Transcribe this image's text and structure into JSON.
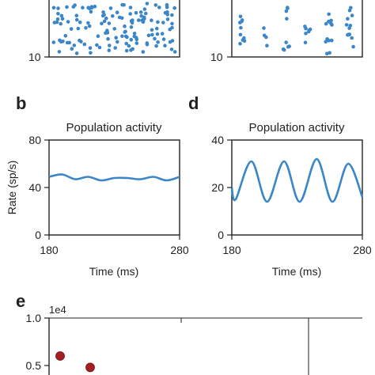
{
  "colors": {
    "series": "#3a86c8",
    "marker": "#a41e22",
    "axis": "#222222"
  },
  "raster_panels": [
    {
      "ytick_bottom": "10",
      "dot_count": 140
    },
    {
      "ytick_bottom": "10",
      "dot_count": 55
    }
  ],
  "panel_labels": {
    "b": "b",
    "d": "d",
    "e": "e"
  },
  "chart_data": [
    {
      "type": "line",
      "panel": "b",
      "title": "Population activity",
      "xlabel": "Time (ms)",
      "ylabel": "Rate (sp/s)",
      "xlim": [
        180,
        280
      ],
      "ylim": [
        0,
        80
      ],
      "xticks": [
        "180",
        "280"
      ],
      "yticks": [
        "0",
        "40",
        "80"
      ],
      "series": [
        {
          "x": [
            180,
            190,
            200,
            210,
            220,
            230,
            240,
            250,
            260,
            270,
            280
          ],
          "values": [
            49,
            51,
            47,
            49,
            46,
            48,
            48,
            47,
            49,
            46,
            49
          ]
        }
      ]
    },
    {
      "type": "line",
      "panel": "d",
      "title": "Population activity",
      "xlabel": "Time (ms)",
      "ylabel": "",
      "xlim": [
        180,
        280
      ],
      "ylim": [
        0,
        40
      ],
      "xticks": [
        "180",
        "280"
      ],
      "yticks": [
        "0",
        "20",
        "40"
      ],
      "series": [
        {
          "x": [
            180,
            183,
            195,
            207,
            220,
            232,
            245,
            257,
            269,
            280
          ],
          "values": [
            20,
            15,
            31,
            14,
            31,
            14,
            32,
            14,
            30,
            16
          ]
        }
      ]
    },
    {
      "type": "scatter",
      "panel": "e",
      "scale_label": "1e4",
      "yticks": [
        "0.5",
        "1.0"
      ],
      "ylim_visible": [
        0.3,
        1.0
      ],
      "points": [
        {
          "x": 1,
          "y": 0.6
        },
        {
          "x": 2,
          "y": 0.48
        }
      ]
    }
  ]
}
